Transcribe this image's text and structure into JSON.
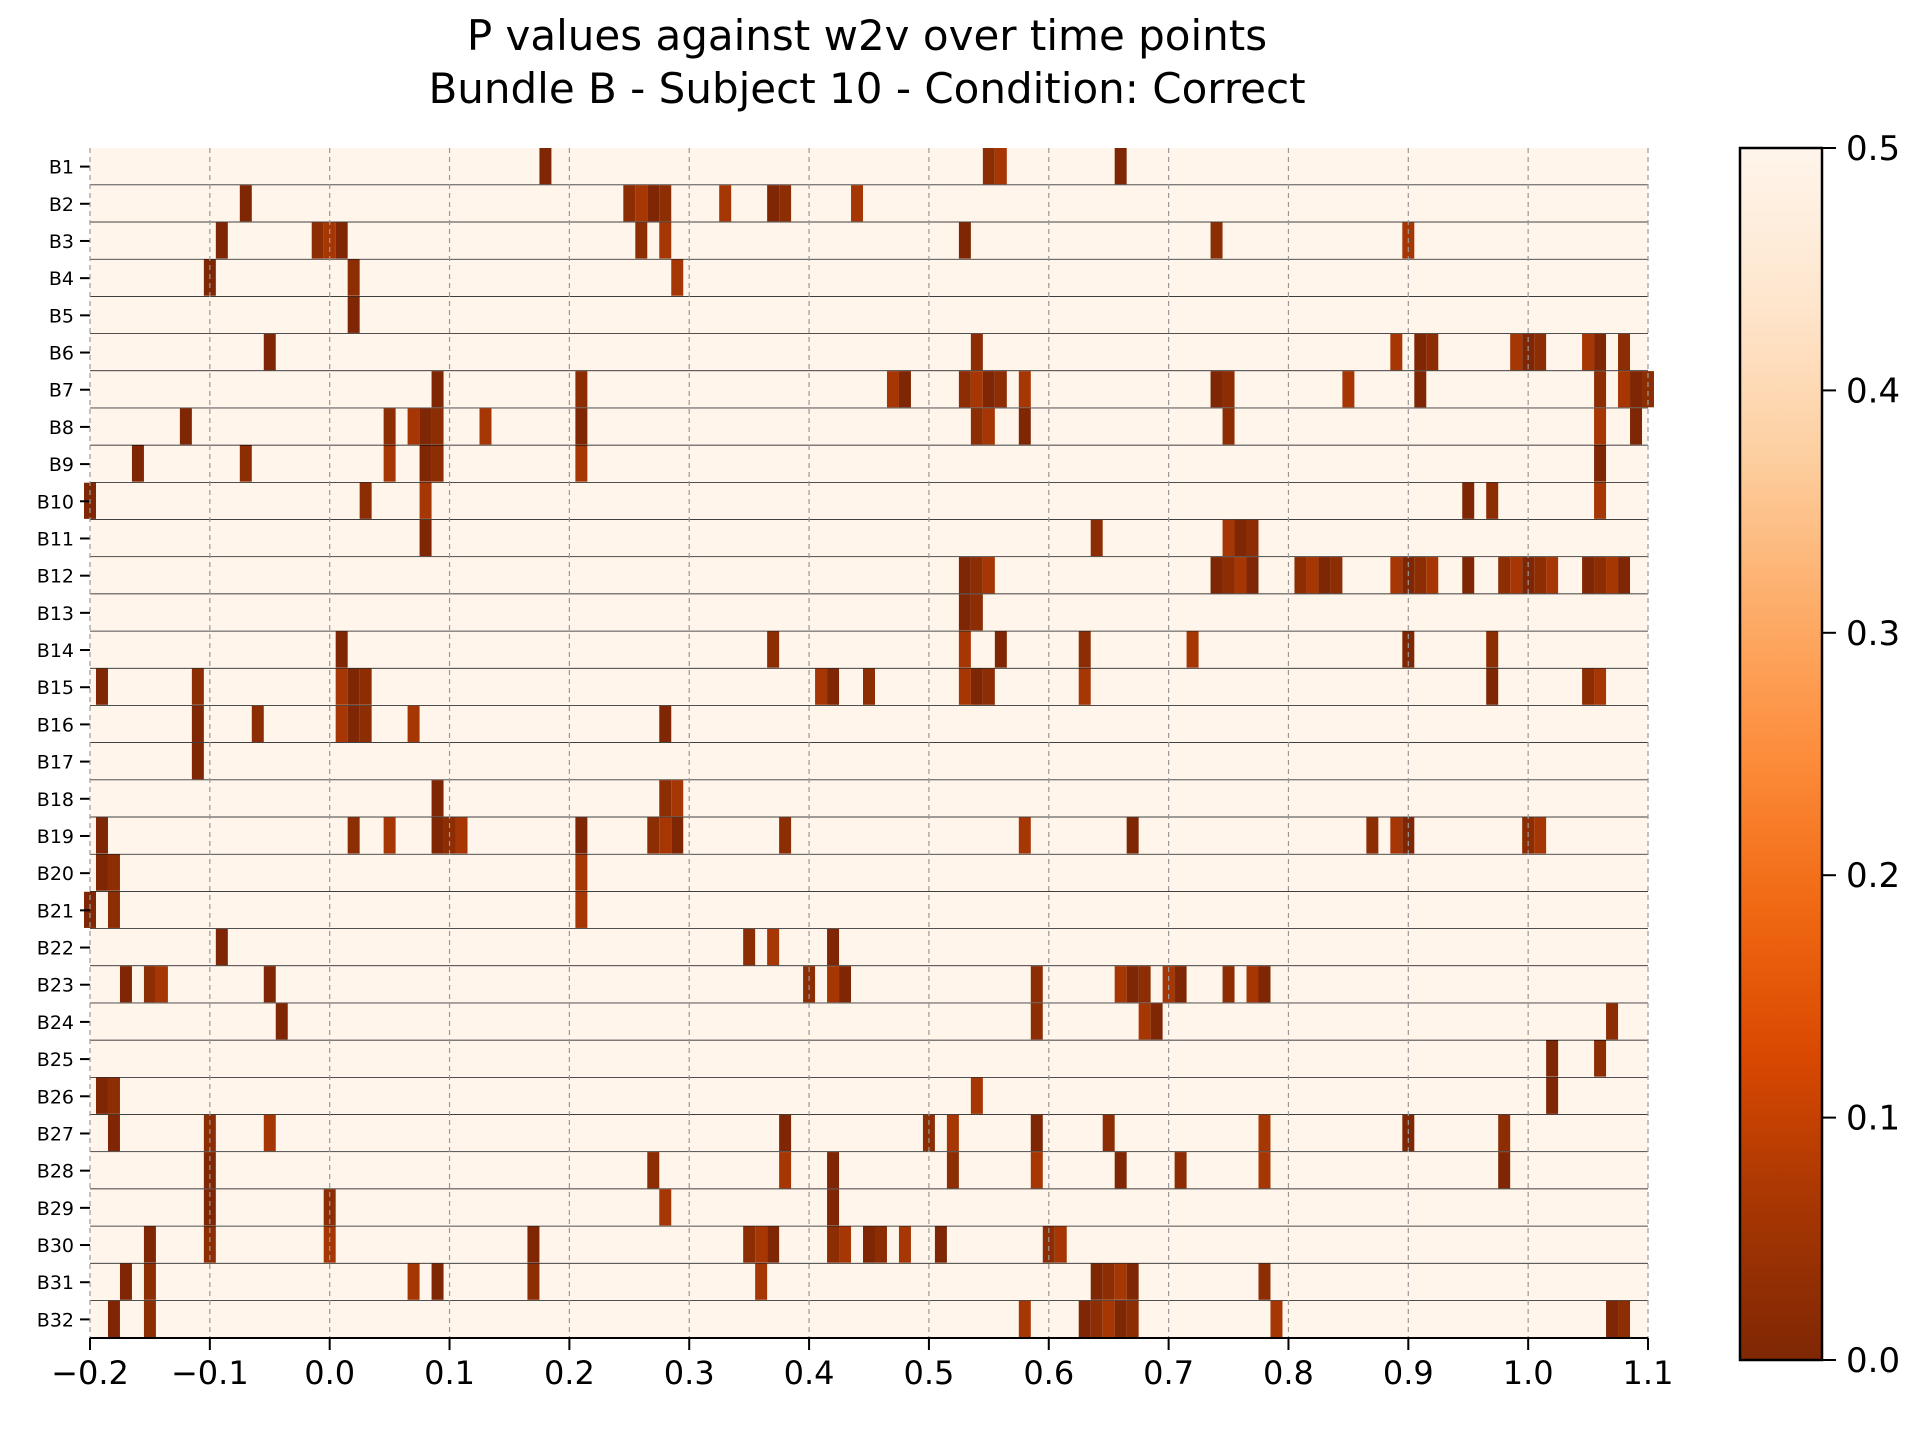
{
  "chart_data": {
    "type": "heatmap",
    "title": "P values against w2v over time points",
    "subtitle": "Bundle B - Subject 10 - Condition: Correct",
    "xlabel": "",
    "ylabel": "",
    "xlim": [
      -0.2,
      1.1
    ],
    "x_ticks": [
      "−0.2",
      "−0.1",
      "0.0",
      "0.1",
      "0.2",
      "0.3",
      "0.4",
      "0.5",
      "0.6",
      "0.7",
      "0.8",
      "0.9",
      "1.0",
      "1.1"
    ],
    "x_tick_values": [
      -0.2,
      -0.1,
      0.0,
      0.1,
      0.2,
      0.3,
      0.4,
      0.5,
      0.6,
      0.7,
      0.8,
      0.9,
      1.0,
      1.1
    ],
    "grid": "vertical dashed",
    "rows": [
      "B1",
      "B2",
      "B3",
      "B4",
      "B5",
      "B6",
      "B7",
      "B8",
      "B9",
      "B10",
      "B11",
      "B12",
      "B13",
      "B14",
      "B15",
      "B16",
      "B17",
      "B18",
      "B19",
      "B20",
      "B21",
      "B22",
      "B23",
      "B24",
      "B25",
      "B26",
      "B27",
      "B28",
      "B29",
      "B30",
      "B31",
      "B32"
    ],
    "default_value": 0.5,
    "colorbar": {
      "range": [
        0.0,
        0.5
      ],
      "ticks": [
        "0.0",
        "0.1",
        "0.2",
        "0.3",
        "0.4",
        "0.5"
      ],
      "tick_values": [
        0.0,
        0.1,
        0.2,
        0.3,
        0.4,
        0.5
      ],
      "colors": [
        "#7f2704",
        "#a63603",
        "#d94801",
        "#f16913",
        "#fd8d3c",
        "#fdae6b",
        "#fdd0a2",
        "#fee6ce",
        "#fff5eb"
      ]
    },
    "significant_cells": [
      {
        "row": "B1",
        "x": [
          0.18,
          0.55,
          0.56,
          0.66
        ]
      },
      {
        "row": "B2",
        "x": [
          -0.07,
          0.25,
          0.26,
          0.27,
          0.28,
          0.33,
          0.37,
          0.38,
          0.44
        ]
      },
      {
        "row": "B3",
        "x": [
          -0.09,
          -0.01,
          0.0,
          0.01,
          0.26,
          0.28,
          0.53,
          0.74,
          0.9
        ]
      },
      {
        "row": "B4",
        "x": [
          -0.1,
          0.02,
          0.29
        ]
      },
      {
        "row": "B5",
        "x": [
          0.02
        ]
      },
      {
        "row": "B6",
        "x": [
          -0.05,
          0.54,
          0.89,
          0.91,
          0.92,
          0.99,
          1.0,
          1.01,
          1.05,
          1.06,
          1.08
        ]
      },
      {
        "row": "B7",
        "x": [
          0.09,
          0.21,
          0.47,
          0.48,
          0.53,
          0.54,
          0.55,
          0.56,
          0.58,
          0.74,
          0.75,
          0.85,
          0.91,
          1.06,
          1.08,
          1.09,
          1.1
        ]
      },
      {
        "row": "B8",
        "x": [
          -0.12,
          0.05,
          0.07,
          0.08,
          0.09,
          0.13,
          0.21,
          0.54,
          0.55,
          0.58,
          0.75,
          1.06,
          1.09
        ]
      },
      {
        "row": "B9",
        "x": [
          -0.16,
          -0.07,
          0.05,
          0.08,
          0.09,
          0.21,
          1.06
        ]
      },
      {
        "row": "B10",
        "x": [
          -0.2,
          0.03,
          0.08,
          0.95,
          0.97,
          1.06
        ]
      },
      {
        "row": "B11",
        "x": [
          0.08,
          0.64,
          0.75,
          0.76,
          0.77
        ]
      },
      {
        "row": "B12",
        "x": [
          0.53,
          0.54,
          0.55,
          0.74,
          0.75,
          0.76,
          0.77,
          0.81,
          0.82,
          0.83,
          0.84,
          0.89,
          0.9,
          0.91,
          0.92,
          0.95,
          0.98,
          0.99,
          1.0,
          1.01,
          1.02,
          1.05,
          1.06,
          1.07,
          1.08
        ]
      },
      {
        "row": "B13",
        "x": [
          0.53,
          0.54
        ]
      },
      {
        "row": "B14",
        "x": [
          0.01,
          0.37,
          0.53,
          0.56,
          0.63,
          0.72,
          0.9,
          0.97
        ]
      },
      {
        "row": "B15",
        "x": [
          -0.19,
          -0.11,
          0.01,
          0.02,
          0.03,
          0.41,
          0.42,
          0.45,
          0.53,
          0.54,
          0.55,
          0.63,
          0.97,
          1.05,
          1.06
        ]
      },
      {
        "row": "B16",
        "x": [
          -0.11,
          -0.06,
          0.01,
          0.02,
          0.03,
          0.07,
          0.28
        ]
      },
      {
        "row": "B17",
        "x": [
          -0.11
        ]
      },
      {
        "row": "B18",
        "x": [
          0.09,
          0.28,
          0.29
        ]
      },
      {
        "row": "B19",
        "x": [
          -0.19,
          0.02,
          0.05,
          0.09,
          0.1,
          0.11,
          0.21,
          0.27,
          0.28,
          0.29,
          0.38,
          0.58,
          0.67,
          0.87,
          0.89,
          0.9,
          1.0,
          1.01
        ]
      },
      {
        "row": "B20",
        "x": [
          -0.19,
          -0.18,
          0.21
        ]
      },
      {
        "row": "B21",
        "x": [
          -0.2,
          -0.18,
          0.21
        ]
      },
      {
        "row": "B22",
        "x": [
          -0.09,
          0.35,
          0.37,
          0.42
        ]
      },
      {
        "row": "B23",
        "x": [
          -0.17,
          -0.15,
          -0.14,
          -0.05,
          0.4,
          0.42,
          0.43,
          0.59,
          0.66,
          0.67,
          0.68,
          0.7,
          0.71,
          0.75,
          0.77,
          0.78
        ]
      },
      {
        "row": "B24",
        "x": [
          -0.04,
          0.59,
          0.68,
          0.69,
          1.07
        ]
      },
      {
        "row": "B25",
        "x": [
          1.02,
          1.06
        ]
      },
      {
        "row": "B26",
        "x": [
          -0.19,
          -0.18,
          0.54,
          1.02
        ]
      },
      {
        "row": "B27",
        "x": [
          -0.18,
          -0.1,
          -0.05,
          0.38,
          0.5,
          0.52,
          0.59,
          0.65,
          0.78,
          0.9,
          0.98
        ]
      },
      {
        "row": "B28",
        "x": [
          -0.1,
          0.27,
          0.38,
          0.42,
          0.52,
          0.59,
          0.66,
          0.71,
          0.78,
          0.98
        ]
      },
      {
        "row": "B29",
        "x": [
          -0.1,
          0.0,
          0.28,
          0.42
        ]
      },
      {
        "row": "B30",
        "x": [
          -0.15,
          -0.1,
          0.0,
          0.17,
          0.35,
          0.36,
          0.37,
          0.42,
          0.43,
          0.45,
          0.46,
          0.48,
          0.51,
          0.6,
          0.61
        ]
      },
      {
        "row": "B31",
        "x": [
          -0.17,
          -0.15,
          0.07,
          0.09,
          0.17,
          0.36,
          0.64,
          0.65,
          0.66,
          0.67,
          0.78
        ]
      },
      {
        "row": "B32",
        "x": [
          -0.18,
          -0.15,
          0.58,
          0.63,
          0.64,
          0.65,
          0.66,
          0.67,
          0.79,
          1.07,
          1.08
        ]
      }
    ]
  }
}
